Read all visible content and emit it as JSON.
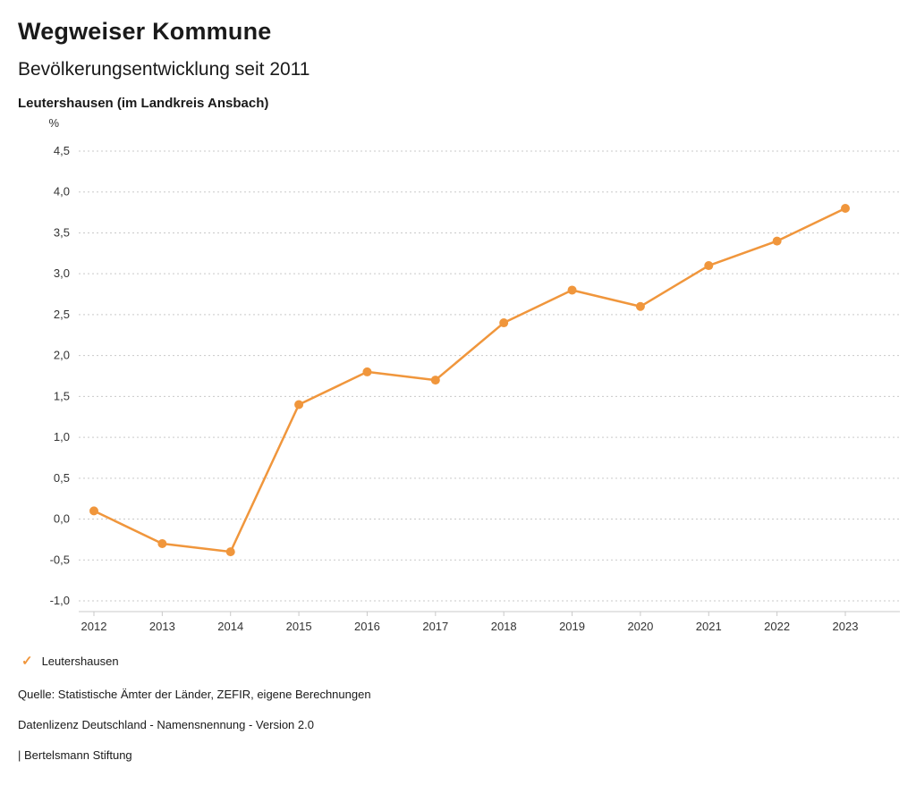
{
  "header": {
    "title": "Wegweiser Kommune",
    "subtitle": "Bevölkerungsentwicklung seit 2011",
    "region": "Leutershausen (im Landkreis Ansbach)"
  },
  "chart_data": {
    "type": "line",
    "title": "Bevölkerungsentwicklung seit 2011",
    "unit_label": "%",
    "xlabel": "",
    "ylabel": "%",
    "categories": [
      2012,
      2013,
      2014,
      2015,
      2016,
      2017,
      2018,
      2019,
      2020,
      2021,
      2022,
      2023
    ],
    "series": [
      {
        "name": "Leutershausen",
        "values": [
          0.1,
          -0.3,
          -0.4,
          1.4,
          1.8,
          1.7,
          2.4,
          2.8,
          2.6,
          3.1,
          3.4,
          3.8
        ],
        "color": "#F0963C"
      }
    ],
    "ylim": [
      -1.0,
      4.5
    ],
    "ytick_step": 0.5,
    "grid": true,
    "gridline_style": "dotted",
    "legend_position": "bottom"
  },
  "legend": {
    "check_icon": "✓",
    "label": "Leutershausen"
  },
  "footer": {
    "source": "Quelle: Statistische Ämter der Länder, ZEFIR, eigene Berechnungen",
    "license": "Datenlizenz Deutschland - Namensnennung - Version 2.0",
    "attribution": "| Bertelsmann Stiftung"
  },
  "colors": {
    "accent": "#F0963C",
    "grid": "#c9c9c9",
    "axis": "#c9c9c9",
    "tick_text": "#333333",
    "text": "#1a1a1a"
  }
}
